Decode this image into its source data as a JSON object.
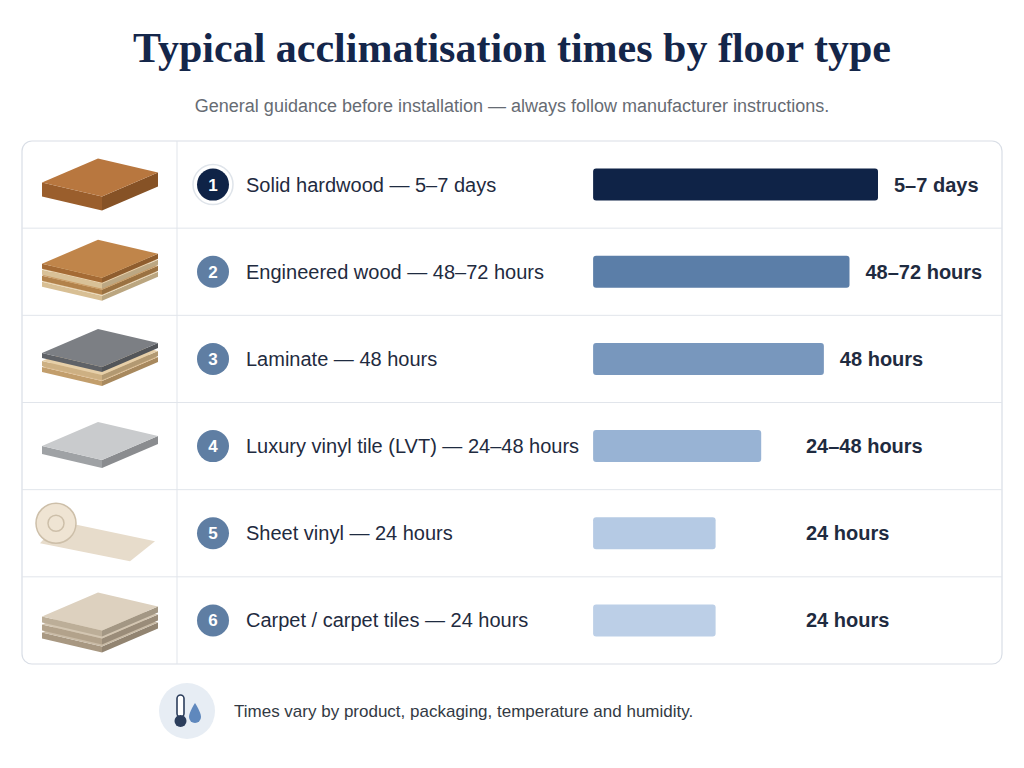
{
  "chart_data": {
    "type": "bar",
    "orientation": "horizontal",
    "title": "Typical acclimatisation times by floor type",
    "subtitle": "General guidance before installation — always follow manufacturer instructions.",
    "note": "Times vary by product, packaging, temperature and humidity.",
    "row_numbers": [
      1,
      2,
      3,
      4,
      5,
      6
    ],
    "categories": [
      "Solid hardwood — 5–7 days",
      "Engineered wood — 48–72 hours",
      "Laminate — 48 hours",
      "Luxury vinyl tile (LVT) — 24–48 hours",
      "Sheet vinyl — 24 hours",
      "Carpet / carpet tiles — 24 hours"
    ],
    "values": [
      100,
      90,
      81,
      59,
      43,
      43
    ],
    "bar_labels": [
      "5–7 days",
      "48–72 hours",
      "48 hours",
      "24–48 hours",
      "24 hours",
      "24 hours"
    ],
    "colors": [
      "#0f2347",
      "#5b7ea8",
      "#7897bd",
      "#98b3d4",
      "#b5cae4",
      "#bccfe7"
    ],
    "xlim": [
      0,
      100
    ],
    "tick_labels": false,
    "grid": false
  }
}
